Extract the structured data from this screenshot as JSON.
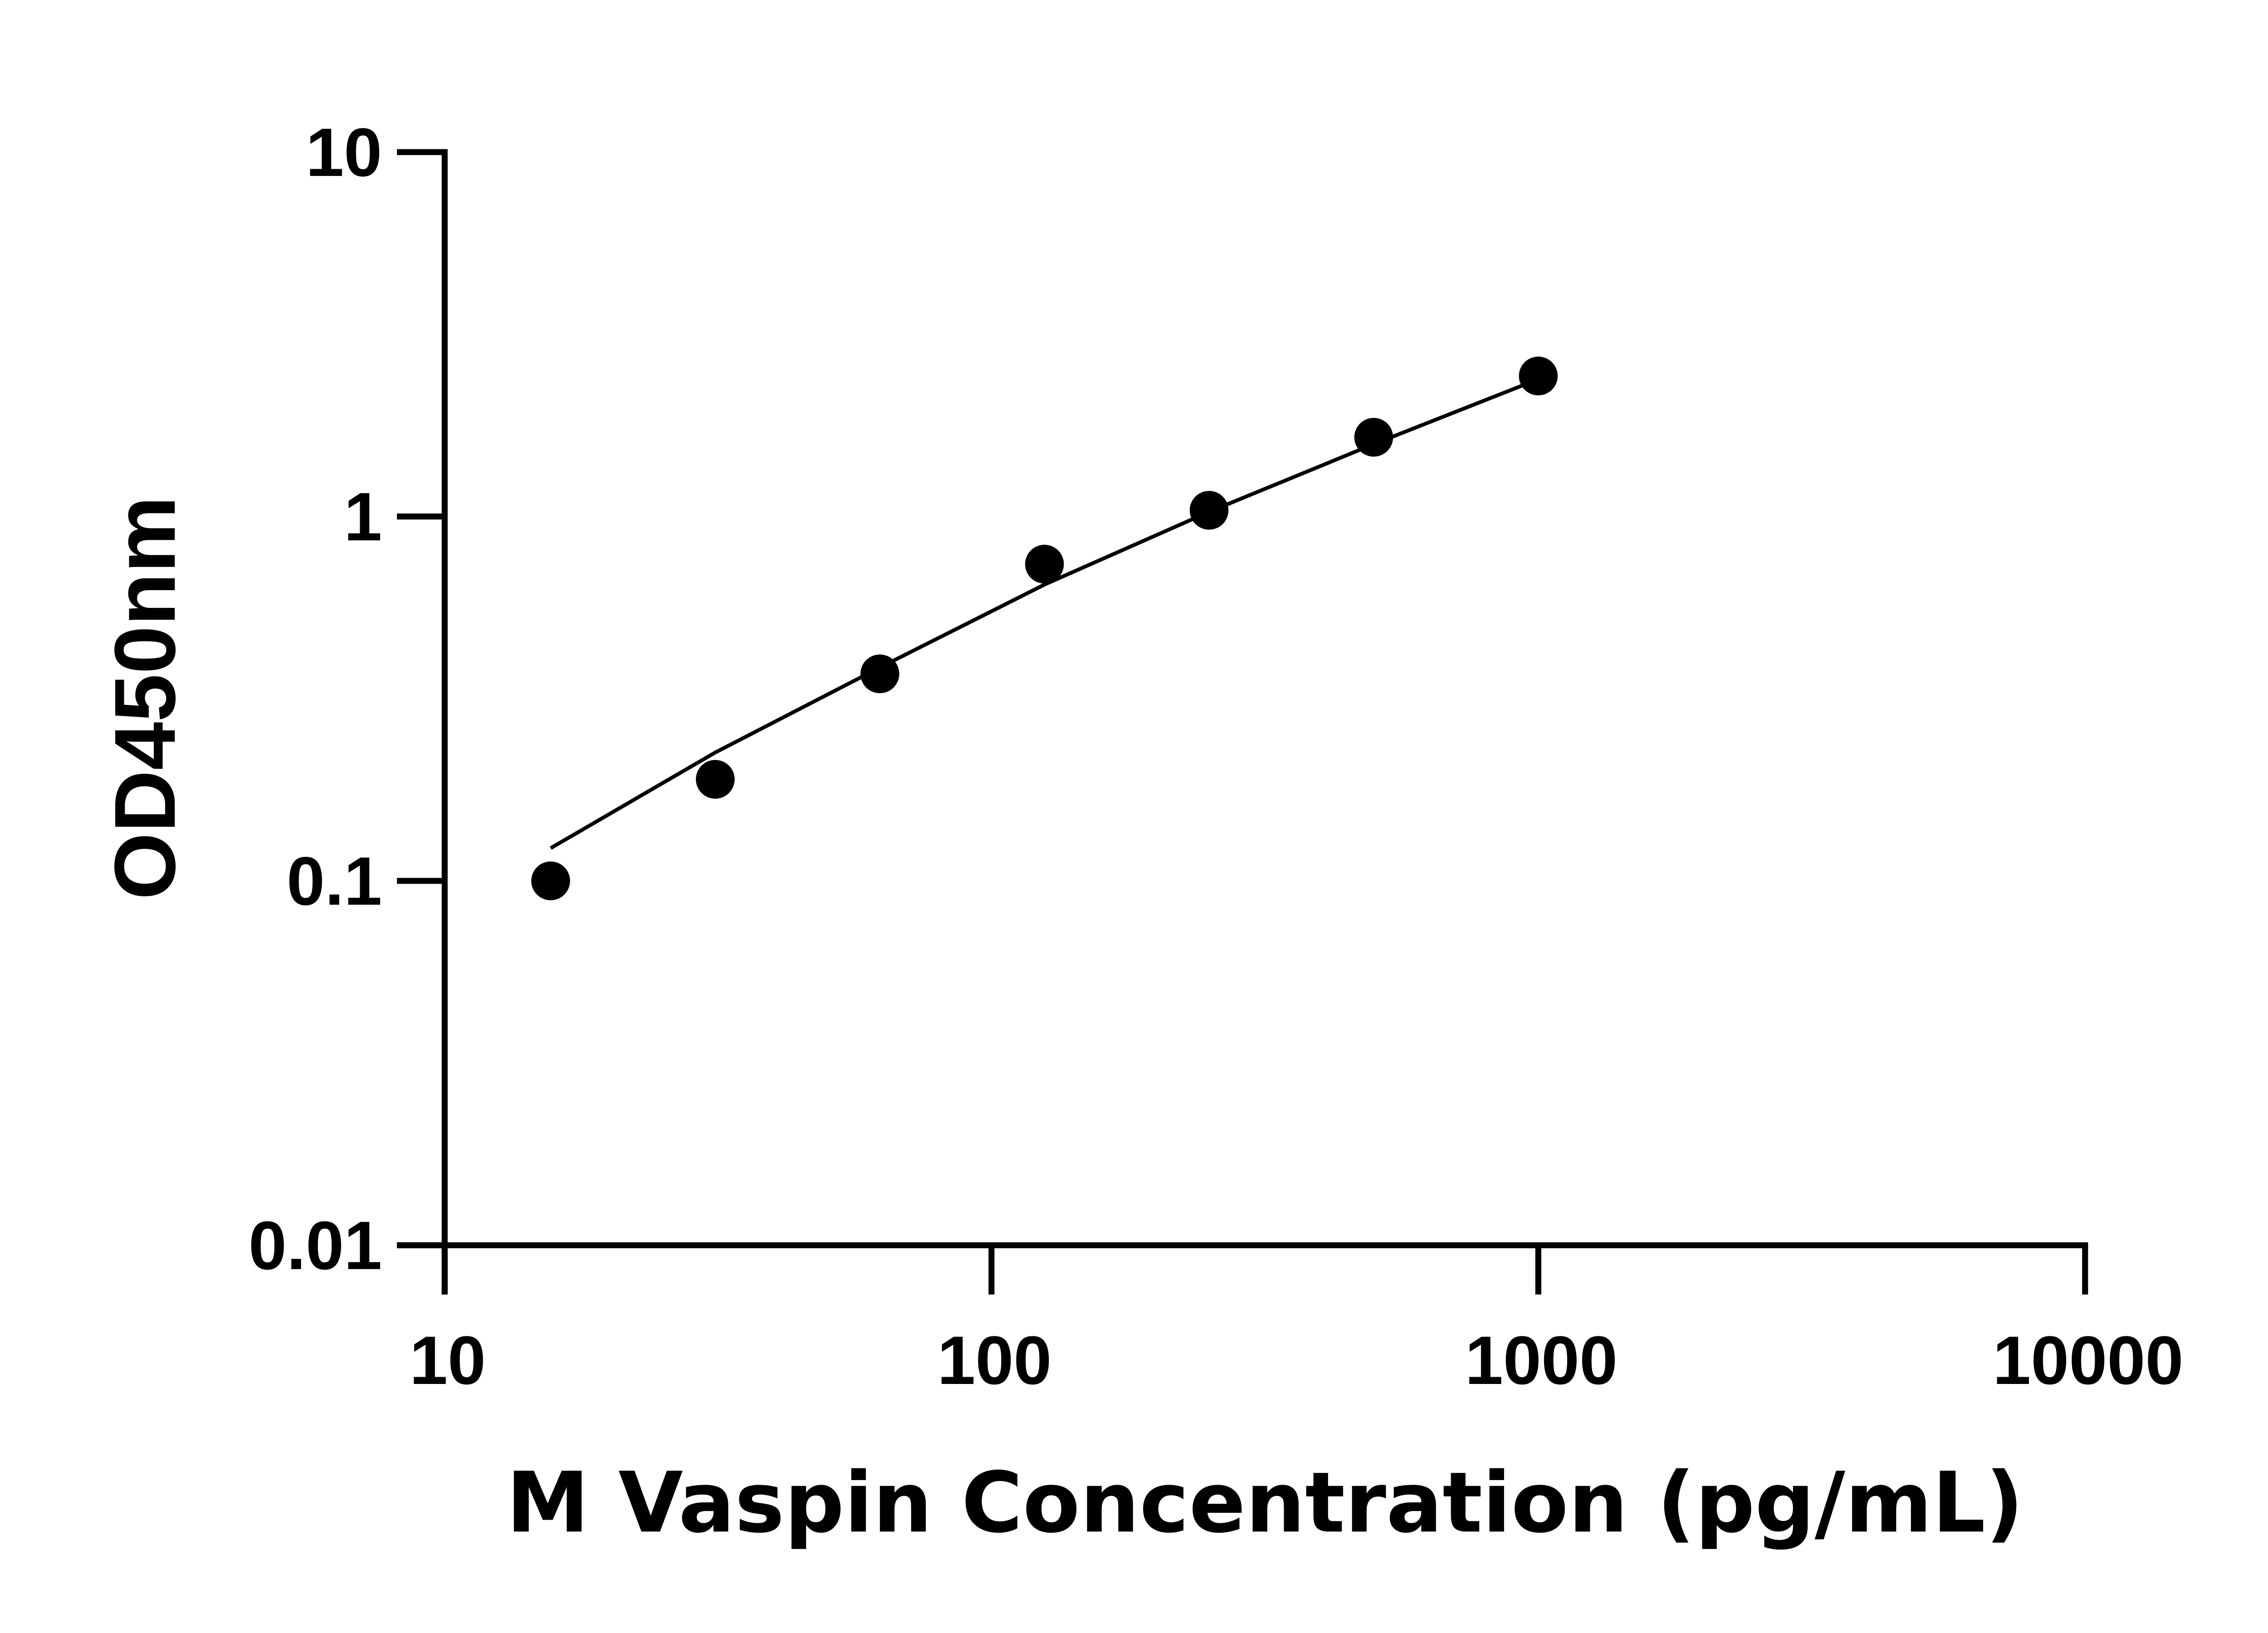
{
  "chart_data": {
    "type": "scatter",
    "xlabel": "M Vaspin Concentration (pg/mL)",
    "ylabel": "OD450nm",
    "x_scale": "log",
    "y_scale": "log",
    "xlim": [
      10,
      10000
    ],
    "ylim": [
      0.01,
      10
    ],
    "x_ticks": [
      "10",
      "100",
      "1000",
      "10000"
    ],
    "y_ticks": [
      "0.01",
      "0.1",
      "1",
      "10"
    ],
    "grid": false,
    "marker_color": "#000000",
    "points": [
      {
        "x": 15.625,
        "y": 0.1
      },
      {
        "x": 31.25,
        "y": 0.19
      },
      {
        "x": 62.5,
        "y": 0.37
      },
      {
        "x": 125,
        "y": 0.74
      },
      {
        "x": 250,
        "y": 1.04
      },
      {
        "x": 500,
        "y": 1.65
      },
      {
        "x": 1000,
        "y": 2.43
      }
    ],
    "fit_curve": [
      {
        "x": 15.625,
        "y": 0.123
      },
      {
        "x": 31.25,
        "y": 0.225
      },
      {
        "x": 62.5,
        "y": 0.385
      },
      {
        "x": 125,
        "y": 0.65
      },
      {
        "x": 250,
        "y": 1.03
      },
      {
        "x": 500,
        "y": 1.58
      },
      {
        "x": 1000,
        "y": 2.38
      }
    ]
  }
}
